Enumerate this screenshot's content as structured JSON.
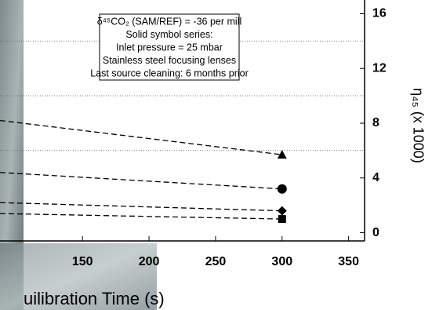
{
  "chart_data": {
    "type": "line",
    "x_label": "uilibration Time (s)",
    "y_label": "η₄₅ (x 1000)",
    "annotation": [
      "δ⁴⁵CO₂ (SAM/REF) = -36 per mill",
      "Solid symbol series:",
      "Inlet pressure = 25 mbar",
      "Stainless steel focusing lenses",
      "Last source cleaning: 6 months prior"
    ],
    "x": [
      88,
      300
    ],
    "series": [
      {
        "marker": "triangle",
        "color": "#000000",
        "values": [
          8.2,
          5.7
        ]
      },
      {
        "marker": "circle",
        "color": "#000000",
        "values": [
          4.4,
          3.2
        ]
      },
      {
        "marker": "diamond",
        "color": "#000000",
        "values": [
          2.2,
          1.6
        ]
      },
      {
        "marker": "square",
        "color": "#000000",
        "values": [
          1.4,
          1.0
        ]
      }
    ],
    "xlim": [
      88,
      362
    ],
    "xticks": [
      150,
      200,
      250,
      300,
      350
    ],
    "ylim": [
      -0.6,
      17
    ],
    "yticks": [
      0,
      4,
      8,
      12,
      16
    ],
    "grid": true,
    "y_axis_side": "right"
  }
}
